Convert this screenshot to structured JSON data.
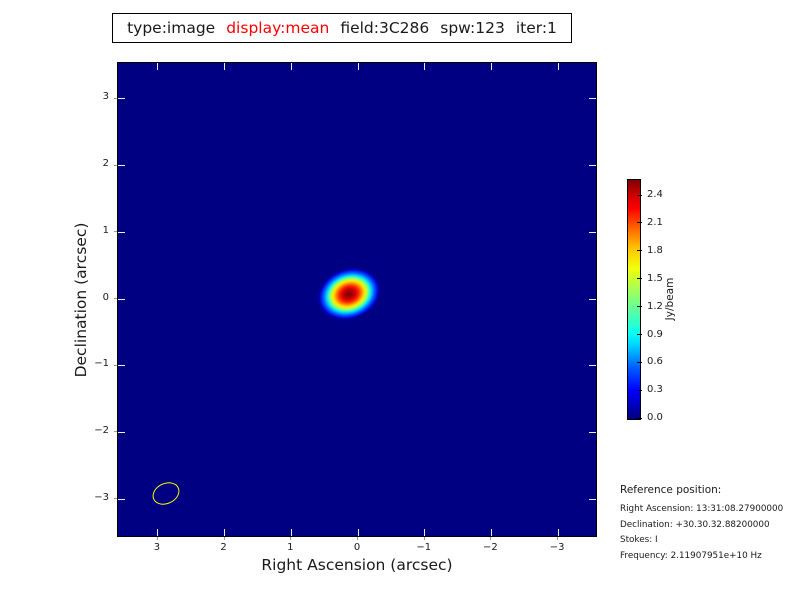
{
  "title": {
    "type_label": "type:image",
    "display_label": "display:mean",
    "field_label": "field:3C286",
    "spw_label": "spw:123",
    "iter_label": "iter:1",
    "display_label_color": "#ff0000",
    "text_color": "#000000"
  },
  "chart_data": {
    "type": "heatmap",
    "description": "Radio interferometric image of calibrator 3C286: elliptical gaussian point-source response at field center on a uniform background, jet colormap, clean-beam ellipse drawn at lower left",
    "xlabel": "Right Ascension (arcsec)",
    "ylabel": "Declination (arcsec)",
    "xlim": [
      3.6,
      -3.6
    ],
    "ylim": [
      -3.6,
      3.6
    ],
    "grid": false,
    "background_value": 0.0,
    "background_color": "#000082",
    "colormap": "jet",
    "xticks": {
      "values": [
        3,
        2,
        1,
        0,
        -1,
        -2,
        -3
      ],
      "labels": [
        "3",
        "2",
        "1",
        "0",
        "−1",
        "−2",
        "−3"
      ]
    },
    "yticks": {
      "values": [
        3,
        2,
        1,
        0,
        -1,
        -2,
        -3
      ],
      "labels": [
        "3",
        "2",
        "1",
        "0",
        "−1",
        "−2",
        "−3"
      ]
    },
    "source": {
      "ra_arcsec": 0.13,
      "dec_arcsec": 0.07,
      "peak_jy_per_beam": 2.57,
      "shape": "elliptical-gaussian",
      "fwhm_major_arcsec": 0.45,
      "fwhm_minor_arcsec": 0.33,
      "position_angle_deg": -20
    },
    "beam": {
      "ra_arcsec": 2.88,
      "dec_arcsec": -2.92,
      "major_arcsec": 0.42,
      "minor_arcsec": 0.3,
      "position_angle_deg": -25,
      "outline_color": "#ffff00"
    },
    "colorbar": {
      "label": "Jy/beam",
      "tick_labels_top_to_bottom": [
        "2.4",
        "2.1",
        "1.8",
        "1.5",
        "1.2",
        "0.9",
        "0.6",
        "0.3",
        "0.0"
      ],
      "vmin": 0.0,
      "vmax": 2.57,
      "position": "right"
    }
  },
  "reference": {
    "heading": "Reference position:",
    "lines": [
      "Right Ascension: 13:31:08.27900000",
      "Declination: +30.30.32.88200000",
      "Stokes: I",
      "Frequency: 2.11907951e+10 Hz"
    ]
  }
}
